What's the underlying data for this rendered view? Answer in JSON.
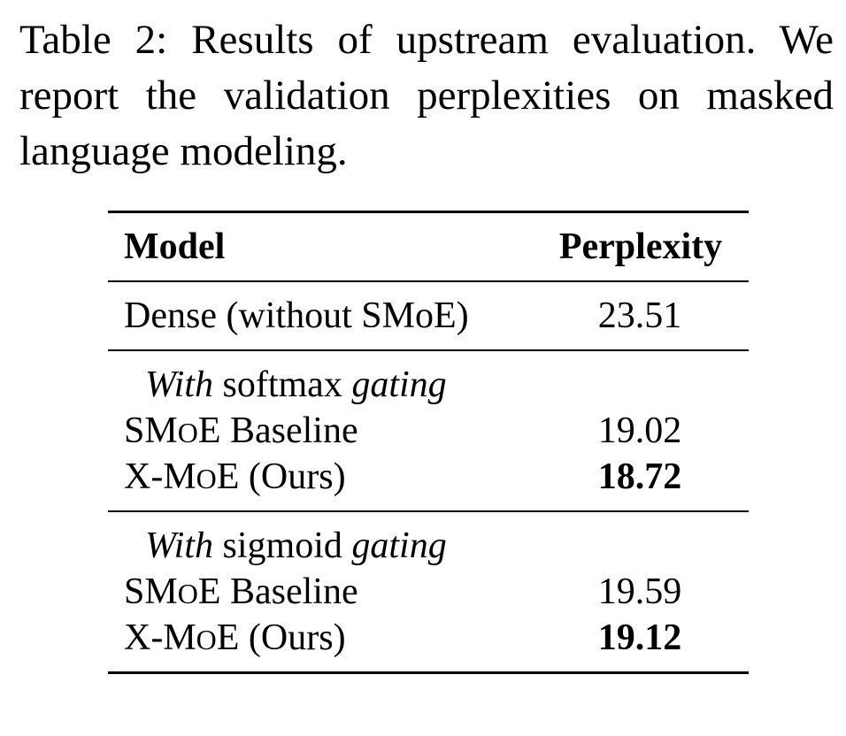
{
  "caption": {
    "text": "Table 2: Results of upstream evaluation. We report the validation perplexities on masked language modeling."
  },
  "table": {
    "headers": {
      "model": "Model",
      "perplexity": "Perplexity"
    },
    "dense_row": {
      "model": "Dense (without SMoE)",
      "perplexity": "23.51"
    },
    "groups": [
      {
        "label_prefix": "With",
        "label_middle": "softmax",
        "label_suffix": "gating",
        "rows": [
          {
            "model_a": "SM",
            "model_b": "O",
            "model_c": "E Baseline",
            "perplexity": "19.02"
          },
          {
            "model_a": "X-M",
            "model_b": "O",
            "model_c": "E (Ours)",
            "perplexity": "18.72",
            "best": true
          }
        ]
      },
      {
        "label_prefix": "With",
        "label_middle": "sigmoid",
        "label_suffix": "gating",
        "rows": [
          {
            "model_a": "SM",
            "model_b": "O",
            "model_c": "E Baseline",
            "perplexity": "19.59"
          },
          {
            "model_a": "X-M",
            "model_b": "O",
            "model_c": "E (Ours)",
            "perplexity": "19.12",
            "best": true
          }
        ]
      }
    ]
  }
}
